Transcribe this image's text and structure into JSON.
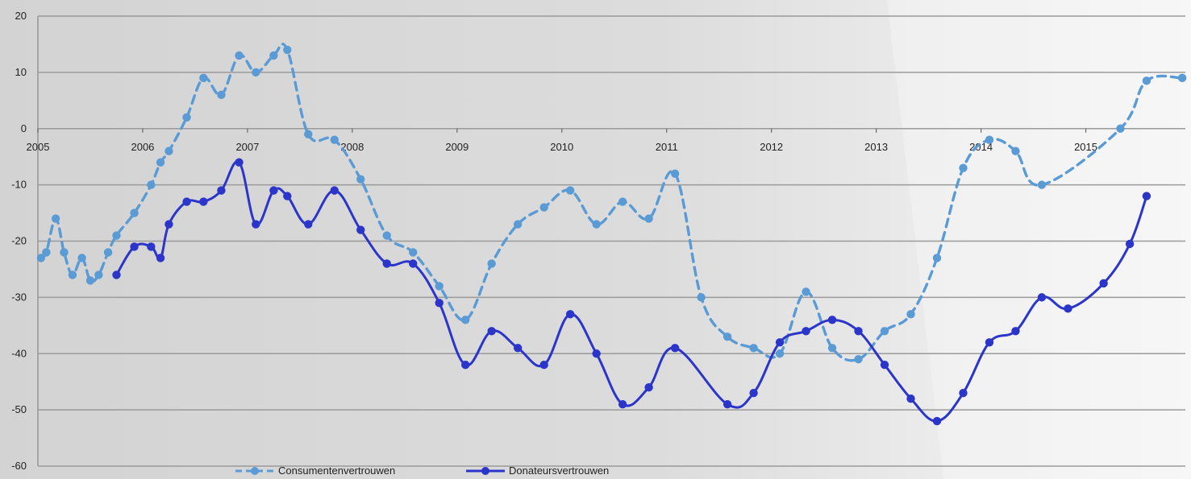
{
  "chart_data": {
    "type": "line",
    "title": "",
    "xlabel": "",
    "ylabel": "",
    "ylim": [
      -60,
      20
    ],
    "xlim": [
      2005,
      2015.95
    ],
    "yticks": [
      20,
      10,
      0,
      -10,
      -20,
      -30,
      -40,
      -50,
      -60
    ],
    "xticks": [
      "2005",
      "2006",
      "2007",
      "2008",
      "2009",
      "2010",
      "2011",
      "2012",
      "2013",
      "2014",
      "2015"
    ],
    "grid": true,
    "legend_position": "bottom",
    "series": [
      {
        "name": "Consumentenvertrouwen",
        "color": "#5b9bd5",
        "line_style": "dashed",
        "points": [
          [
            2005.03,
            -23
          ],
          [
            2005.08,
            -22
          ],
          [
            2005.17,
            -16
          ],
          [
            2005.25,
            -22
          ],
          [
            2005.33,
            -26
          ],
          [
            2005.42,
            -23
          ],
          [
            2005.5,
            -27
          ],
          [
            2005.58,
            -26
          ],
          [
            2005.67,
            -22
          ],
          [
            2005.75,
            -19
          ],
          [
            2005.92,
            -15
          ],
          [
            2006.08,
            -10
          ],
          [
            2006.17,
            -6
          ],
          [
            2006.25,
            -4
          ],
          [
            2006.42,
            2
          ],
          [
            2006.58,
            9
          ],
          [
            2006.75,
            6
          ],
          [
            2006.92,
            13
          ],
          [
            2007.08,
            10
          ],
          [
            2007.25,
            13
          ],
          [
            2007.38,
            14
          ],
          [
            2007.58,
            -1
          ],
          [
            2007.83,
            -2
          ],
          [
            2008.08,
            -9
          ],
          [
            2008.33,
            -19
          ],
          [
            2008.58,
            -22
          ],
          [
            2008.83,
            -28
          ],
          [
            2009.08,
            -34
          ],
          [
            2009.33,
            -24
          ],
          [
            2009.58,
            -17
          ],
          [
            2009.83,
            -14
          ],
          [
            2010.08,
            -11
          ],
          [
            2010.33,
            -17
          ],
          [
            2010.58,
            -13
          ],
          [
            2010.83,
            -16
          ],
          [
            2011.08,
            -8
          ],
          [
            2011.33,
            -30
          ],
          [
            2011.58,
            -37
          ],
          [
            2011.83,
            -39
          ],
          [
            2012.08,
            -40
          ],
          [
            2012.33,
            -29
          ],
          [
            2012.58,
            -39
          ],
          [
            2012.83,
            -41
          ],
          [
            2013.08,
            -36
          ],
          [
            2013.33,
            -33
          ],
          [
            2013.58,
            -23
          ],
          [
            2013.83,
            -7
          ],
          [
            2014.08,
            -2
          ],
          [
            2014.33,
            -4
          ],
          [
            2014.58,
            -10
          ],
          [
            2015.33,
            0
          ],
          [
            2015.58,
            8.5
          ],
          [
            2015.92,
            9
          ]
        ]
      },
      {
        "name": "Donateursvertrouwen",
        "color": "#2b35c9",
        "line_style": "solid",
        "points": [
          [
            2005.75,
            -26
          ],
          [
            2005.92,
            -21
          ],
          [
            2006.08,
            -21
          ],
          [
            2006.17,
            -23
          ],
          [
            2006.25,
            -17
          ],
          [
            2006.42,
            -13
          ],
          [
            2006.58,
            -13
          ],
          [
            2006.75,
            -11
          ],
          [
            2006.92,
            -6
          ],
          [
            2007.08,
            -17
          ],
          [
            2007.25,
            -11
          ],
          [
            2007.38,
            -12
          ],
          [
            2007.58,
            -17
          ],
          [
            2007.83,
            -11
          ],
          [
            2008.08,
            -18
          ],
          [
            2008.33,
            -24
          ],
          [
            2008.58,
            -24
          ],
          [
            2008.83,
            -31
          ],
          [
            2009.08,
            -42
          ],
          [
            2009.33,
            -36
          ],
          [
            2009.58,
            -39
          ],
          [
            2009.83,
            -42
          ],
          [
            2010.08,
            -33
          ],
          [
            2010.33,
            -40
          ],
          [
            2010.58,
            -49
          ],
          [
            2010.83,
            -46
          ],
          [
            2011.08,
            -39
          ],
          [
            2011.58,
            -49
          ],
          [
            2011.83,
            -47
          ],
          [
            2012.08,
            -38
          ],
          [
            2012.33,
            -36
          ],
          [
            2012.58,
            -34
          ],
          [
            2012.83,
            -36
          ],
          [
            2013.08,
            -42
          ],
          [
            2013.33,
            -48
          ],
          [
            2013.58,
            -52
          ],
          [
            2013.83,
            -47
          ],
          [
            2014.08,
            -38
          ],
          [
            2014.33,
            -36
          ],
          [
            2014.58,
            -30
          ],
          [
            2014.83,
            -32
          ],
          [
            2015.17,
            -27.5
          ],
          [
            2015.42,
            -20.5
          ],
          [
            2015.58,
            -12
          ]
        ]
      }
    ]
  }
}
